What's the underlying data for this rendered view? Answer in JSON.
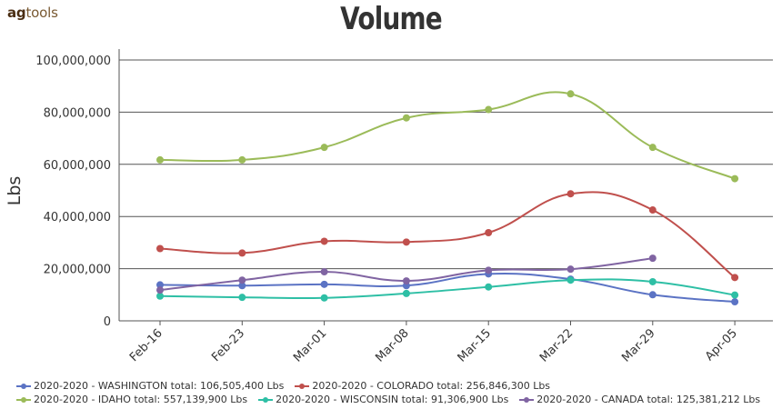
{
  "logo": {
    "ag": "ag",
    "tools": "tools"
  },
  "chart_data": {
    "type": "line",
    "title": "Volume",
    "xlabel": "",
    "ylabel": "Lbs",
    "categories": [
      "Feb-16",
      "Feb-23",
      "Mar-01",
      "Mar-08",
      "Mar-15",
      "Mar-22",
      "Mar-29",
      "Apr-05"
    ],
    "yticks": [
      "0",
      "20,000,000",
      "40,000,000",
      "60,000,000",
      "80,000,000",
      "100,000,000"
    ],
    "ylim": [
      0,
      100000000
    ],
    "grid": true,
    "legend_position": "bottom",
    "series": [
      {
        "name": "2020-2020 - WASHINGTON",
        "total_label": "total: 106,505,400 Lbs",
        "color": "#5b73c4",
        "values": [
          13800000,
          13500000,
          14000000,
          13500000,
          18000000,
          16000000,
          10000000,
          7300000
        ]
      },
      {
        "name": "2020-2020 - COLORADO",
        "total_label": "total: 256,846,300 Lbs",
        "color": "#c0504d",
        "values": [
          27700000,
          26000000,
          30500000,
          30200000,
          33800000,
          48700000,
          42500000,
          16600000
        ]
      },
      {
        "name": "2020-2020 - IDAHO",
        "total_label": "total: 557,139,900 Lbs",
        "color": "#9bbb59",
        "values": [
          61700000,
          61700000,
          66500000,
          77800000,
          81000000,
          87000000,
          66500000,
          54500000
        ]
      },
      {
        "name": "2020-2020 - WISCONSIN",
        "total_label": "total: 91,306,900 Lbs",
        "color": "#2ebfa5",
        "values": [
          9500000,
          9000000,
          8800000,
          10500000,
          13000000,
          15600000,
          15000000,
          9900000
        ]
      },
      {
        "name": "2020-2020 - CANADA",
        "total_label": "total: 125,381,212 Lbs",
        "color": "#8064a2",
        "values": [
          11800000,
          15600000,
          18800000,
          15300000,
          19400000,
          19800000,
          24000000,
          null
        ]
      }
    ]
  }
}
